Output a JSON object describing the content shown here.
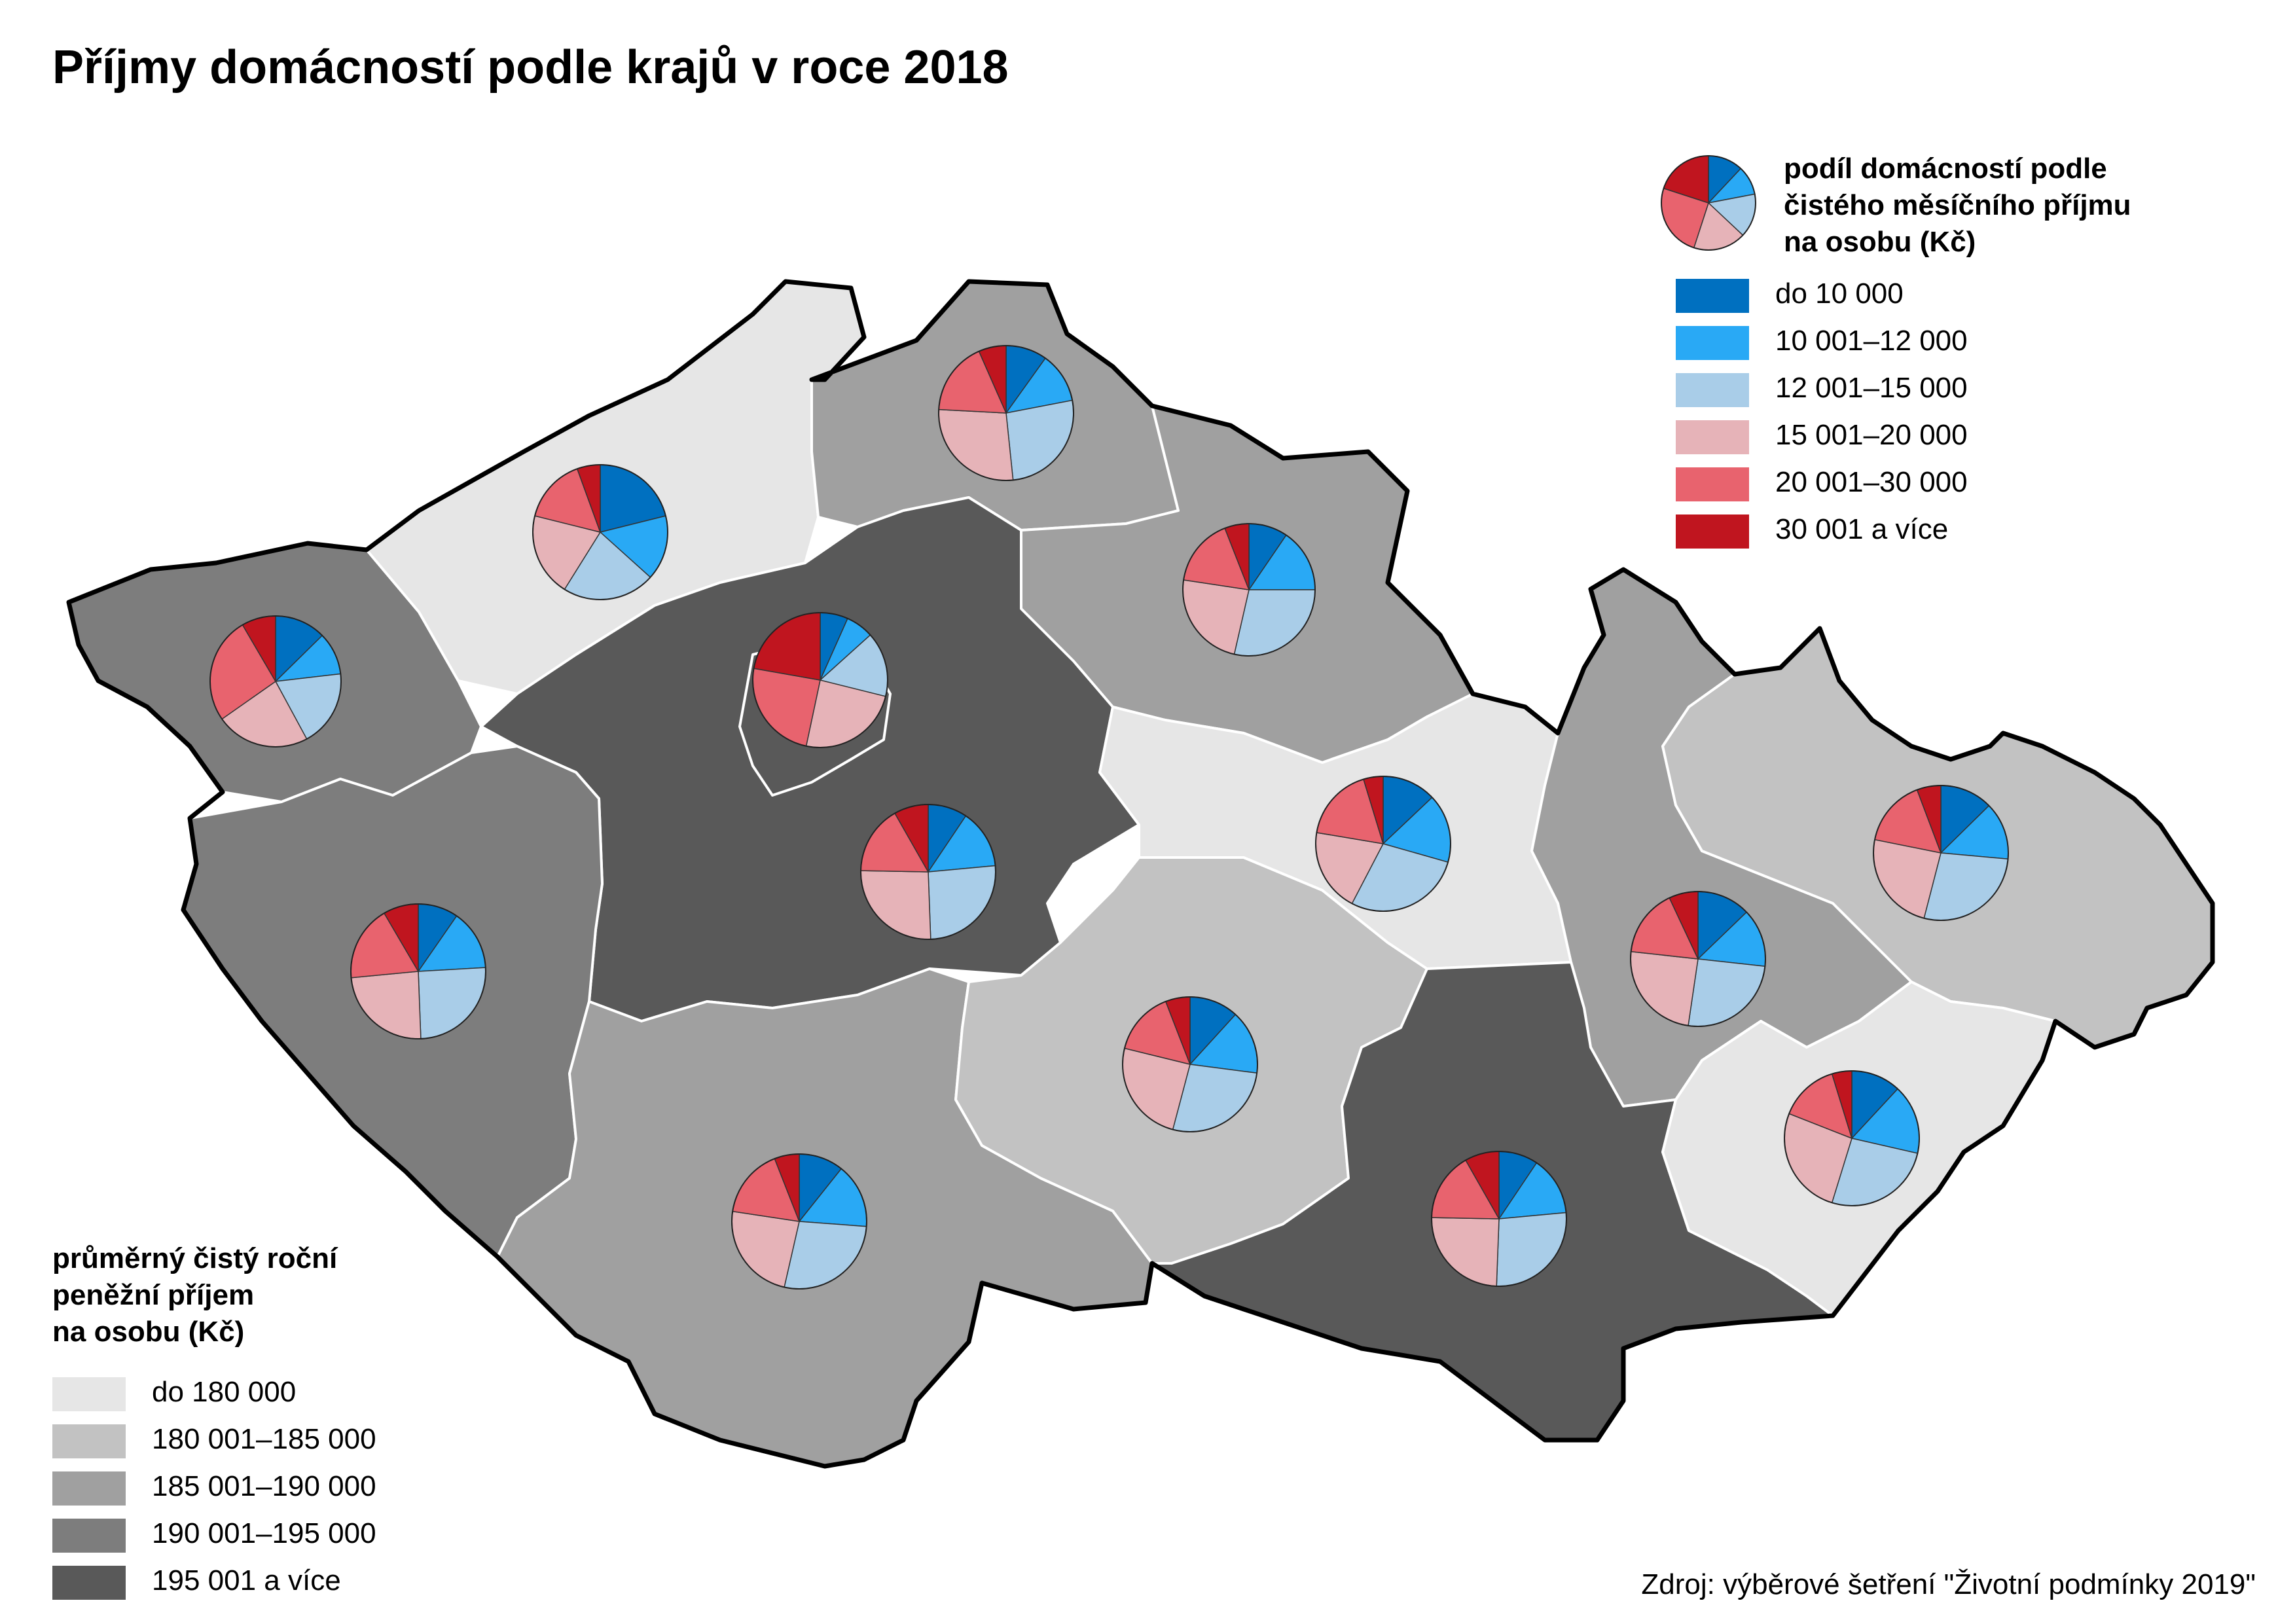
{
  "title": "Příjmy domácností podle krajů v roce 2018",
  "source": "Zdroj: výběrové šetření \"Životní podmínky 2019\"",
  "pie_legend": {
    "title_lines": [
      "podíl domácností podle",
      "čistého měsíčního příjmu",
      "na osobu (Kč)"
    ],
    "items": [
      {
        "label": "do 10 000",
        "color": "#0070c0"
      },
      {
        "label": "10 001–12 000",
        "color": "#29a9f5"
      },
      {
        "label": "12 001–15 000",
        "color": "#a9cde8"
      },
      {
        "label": "15 001–20 000",
        "color": "#e6b3b8"
      },
      {
        "label": "20 001–30 000",
        "color": "#e8636e"
      },
      {
        "label": "30 001 a více",
        "color": "#c0151f"
      }
    ],
    "sample_shares": [
      12,
      10,
      15,
      18,
      25,
      20
    ]
  },
  "region_legend": {
    "title_lines": [
      "průměrný čistý roční",
      "peněžní příjem",
      "na osobu (Kč)"
    ],
    "items": [
      {
        "label": "do 180 000",
        "color": "#e6e6e6"
      },
      {
        "label": "180 001–185 000",
        "color": "#c2c2c2"
      },
      {
        "label": "185 001–190 000",
        "color": "#a0a0a0"
      },
      {
        "label": "190 001–195 000",
        "color": "#7d7d7d"
      },
      {
        "label": "195 001 a více",
        "color": "#595959"
      }
    ]
  },
  "regions": [
    {
      "key": "karlovarsky",
      "class": 3,
      "shares": [
        12,
        10,
        18,
        22,
        25,
        8
      ]
    },
    {
      "key": "ustecky",
      "class": 0,
      "shares": [
        19,
        14,
        20,
        18,
        14,
        5
      ]
    },
    {
      "key": "liberecky",
      "class": 2,
      "shares": [
        9,
        11,
        24,
        25,
        16,
        6
      ]
    },
    {
      "key": "kralovehradecky",
      "class": 2,
      "shares": [
        8,
        13,
        24,
        20,
        14,
        5
      ]
    },
    {
      "key": "praha",
      "class": 4,
      "shares": [
        6,
        6,
        14,
        22,
        22,
        20
      ]
    },
    {
      "key": "stredocesky",
      "class": 4,
      "shares": [
        8,
        12,
        22,
        22,
        14,
        7
      ]
    },
    {
      "key": "plzensky",
      "class": 3,
      "shares": [
        8,
        12,
        21,
        20,
        15,
        7
      ]
    },
    {
      "key": "jihocesky",
      "class": 2,
      "shares": [
        9,
        13,
        23,
        20,
        14,
        5
      ]
    },
    {
      "key": "vysocina",
      "class": 1,
      "shares": [
        10,
        13,
        23,
        21,
        13,
        5
      ]
    },
    {
      "key": "pardubicky",
      "class": 0,
      "shares": [
        11,
        14,
        24,
        17,
        15,
        4
      ]
    },
    {
      "key": "olomoucky",
      "class": 2,
      "shares": [
        11,
        12,
        22,
        21,
        14,
        6
      ]
    },
    {
      "key": "moravskoslezsky",
      "class": 1,
      "shares": [
        11,
        12,
        24,
        21,
        14,
        5
      ]
    },
    {
      "key": "jihomoravsky",
      "class": 4,
      "shares": [
        8,
        12,
        23,
        21,
        14,
        7
      ]
    },
    {
      "key": "zlinsky",
      "class": 0,
      "shares": [
        10,
        14,
        22,
        22,
        12,
        4
      ]
    }
  ]
}
